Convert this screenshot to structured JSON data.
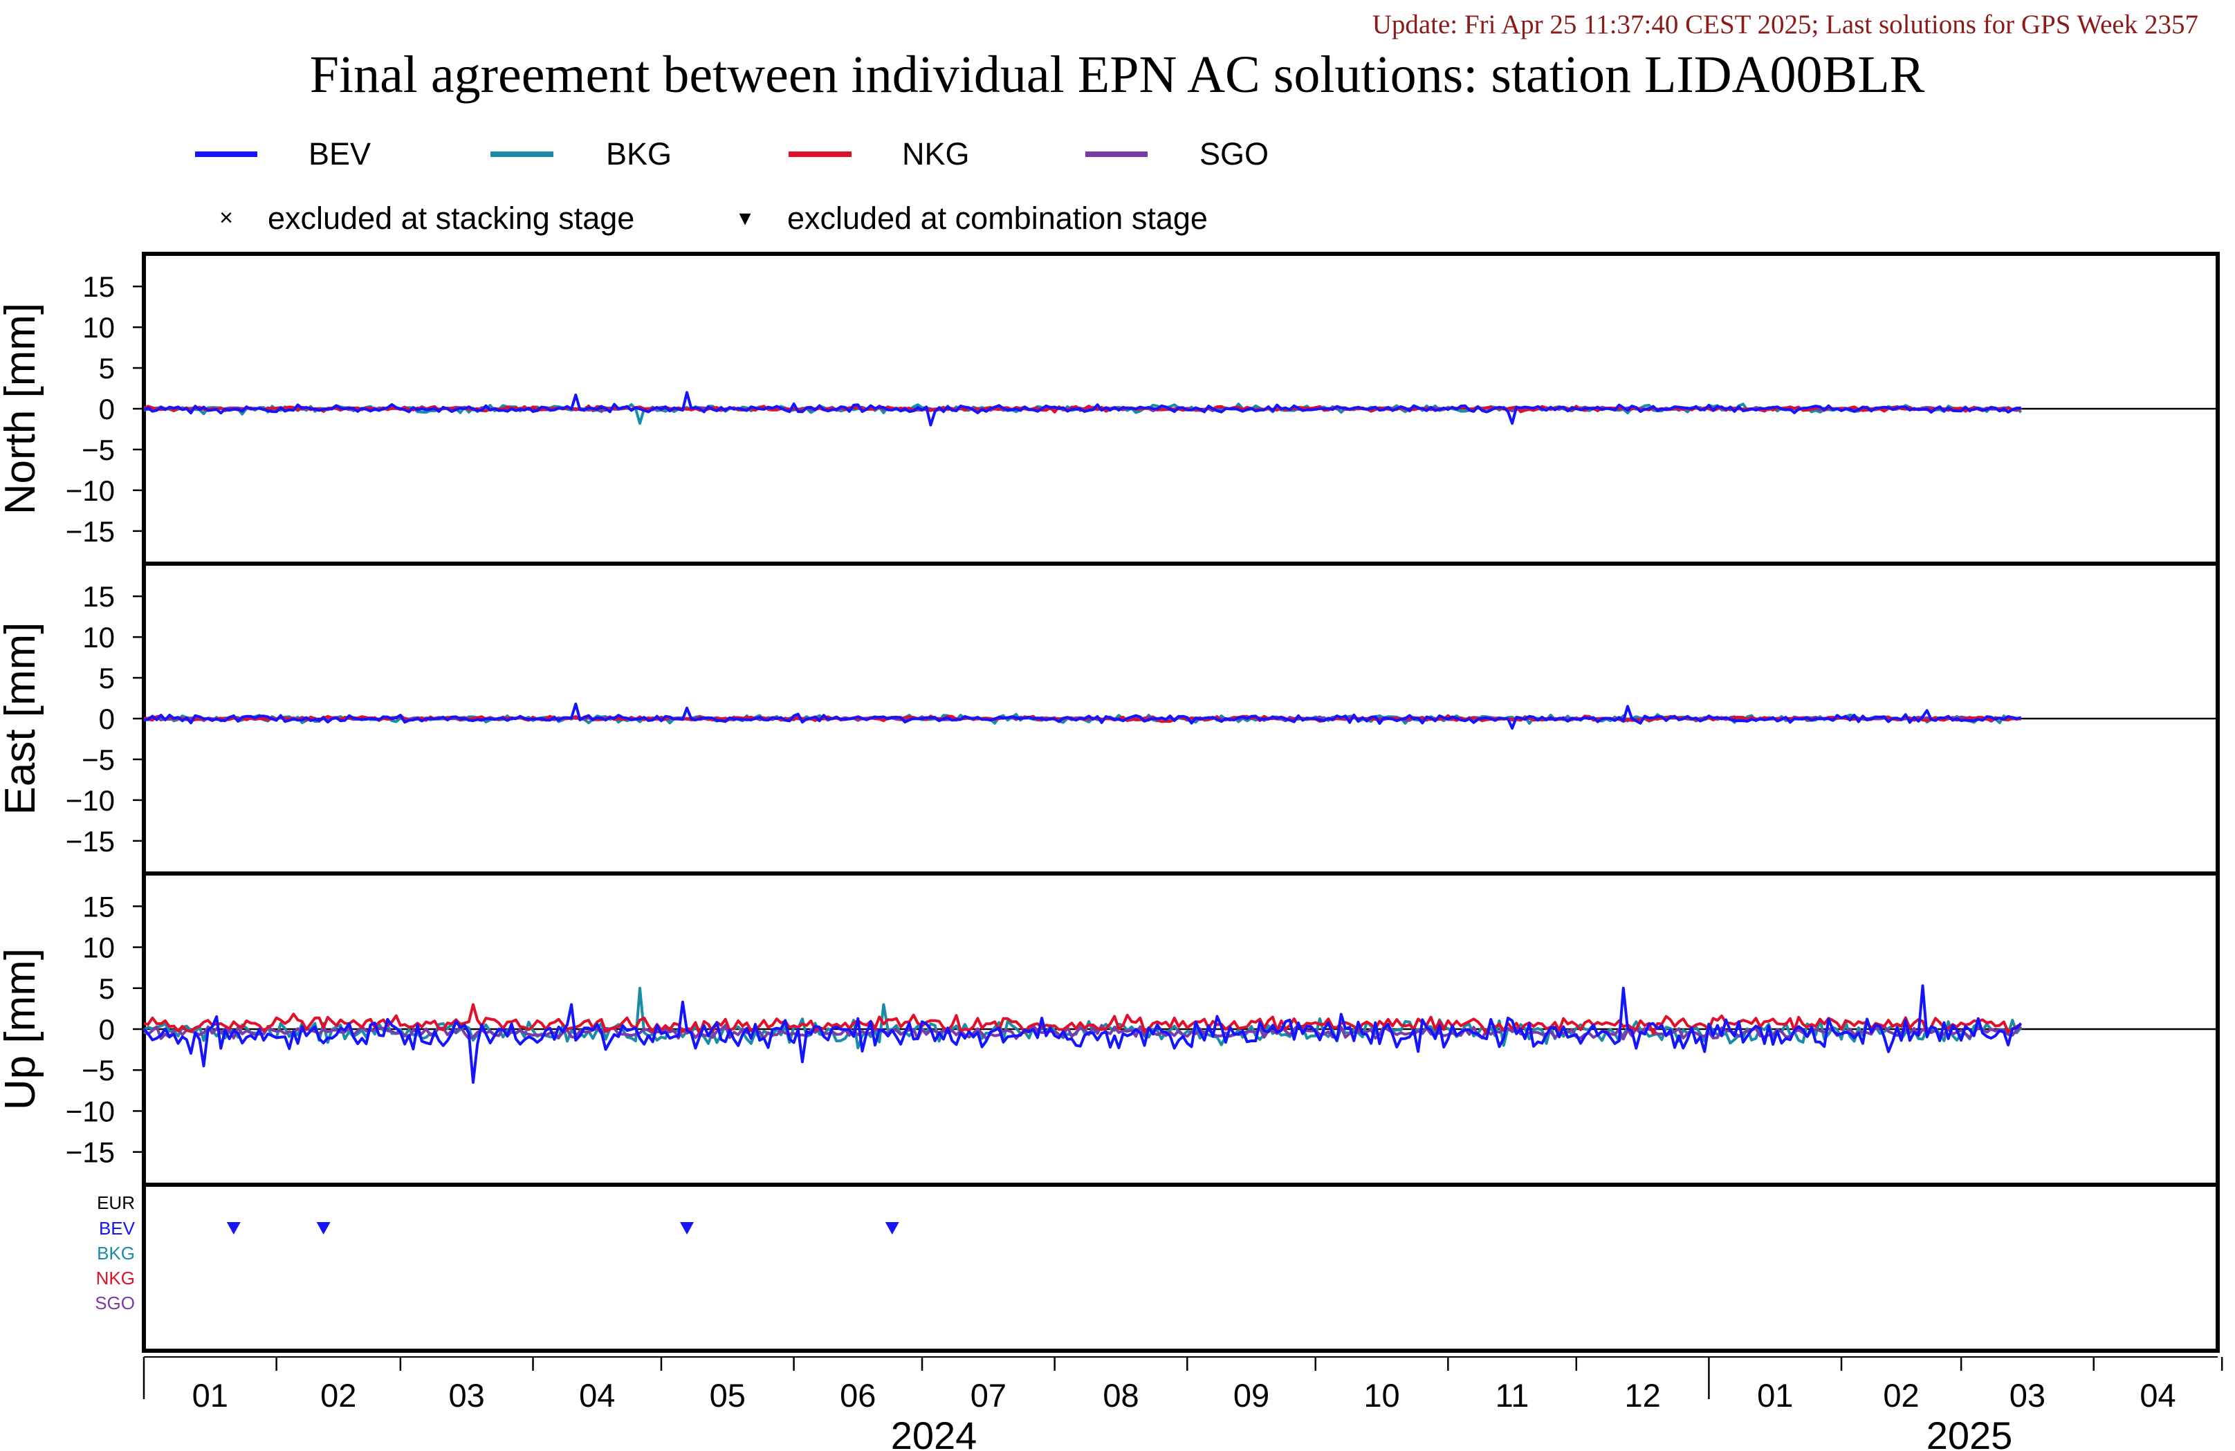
{
  "header": {
    "update_text": "Update: Fri Apr 25 11:37:40 CEST 2025; Last solutions for GPS Week 2357",
    "update_color": "#8b1a1a",
    "title": "Final agreement between individual EPN AC solutions: station LIDA00BLR"
  },
  "legend": {
    "series": [
      {
        "name": "BEV",
        "color": "#1414ff"
      },
      {
        "name": "BKG",
        "color": "#1a8ca8"
      },
      {
        "name": "NKG",
        "color": "#e0102a"
      },
      {
        "name": "SGO",
        "color": "#7a3aa8"
      }
    ],
    "markers": [
      {
        "symbol": "×",
        "label": "excluded at stacking stage"
      },
      {
        "symbol": "▾",
        "label": "excluded at combination stage"
      }
    ]
  },
  "panels": [
    {
      "key": "north",
      "ylabel": "North [mm]"
    },
    {
      "key": "east",
      "ylabel": "East [mm]"
    },
    {
      "key": "up",
      "ylabel": "Up [mm]"
    }
  ],
  "yticks": [
    "15",
    "10",
    "5",
    "0",
    "−5",
    "−10",
    "−15"
  ],
  "exclusion_panel": {
    "labels": [
      {
        "name": "EUR",
        "color": "#000000"
      },
      {
        "name": "BEV",
        "color": "#1414ff"
      },
      {
        "name": "BKG",
        "color": "#1a8ca8"
      },
      {
        "name": "NKG",
        "color": "#e0102a"
      },
      {
        "name": "SGO",
        "color": "#7a3aa8"
      }
    ],
    "marker_color": "#1414ff"
  },
  "xaxis": {
    "month_labels": [
      "01",
      "02",
      "03",
      "04",
      "05",
      "06",
      "07",
      "08",
      "09",
      "10",
      "11",
      "12",
      "01",
      "02",
      "03",
      "04"
    ],
    "year_labels": [
      "2024",
      "2025"
    ]
  },
  "chart_data": {
    "type": "line",
    "title": "Final agreement between individual EPN AC solutions: station LIDA00BLR",
    "x_unit": "date",
    "xlim": [
      "2024-01-01",
      "2025-04-30"
    ],
    "ylim": [
      -19,
      19
    ],
    "grid": false,
    "legend_position": "top",
    "panels": [
      {
        "name": "North",
        "ylabel": "North [mm]",
        "series": [
          {
            "name": "BEV",
            "noise_mm": 0.3,
            "spikes": [
              {
                "date": "2024-04-11",
                "value": 1.7
              },
              {
                "date": "2024-05-07",
                "value": 2.0
              },
              {
                "date": "2024-07-03",
                "value": -2.0
              },
              {
                "date": "2024-11-16",
                "value": -1.8
              }
            ]
          },
          {
            "name": "BKG",
            "noise_mm": 0.3,
            "spikes": [
              {
                "date": "2024-04-26",
                "value": -1.8
              }
            ]
          },
          {
            "name": "NKG",
            "noise_mm": 0.2,
            "spikes": []
          },
          {
            "name": "SGO",
            "noise_mm": 0.15,
            "spikes": []
          }
        ]
      },
      {
        "name": "East",
        "ylabel": "East [mm]",
        "series": [
          {
            "name": "BEV",
            "noise_mm": 0.3,
            "spikes": [
              {
                "date": "2024-04-11",
                "value": 1.8
              },
              {
                "date": "2024-05-07",
                "value": 1.3
              },
              {
                "date": "2024-11-16",
                "value": -1.2
              },
              {
                "date": "2024-12-13",
                "value": 1.5
              },
              {
                "date": "2025-02-21",
                "value": 1.0
              }
            ]
          },
          {
            "name": "BKG",
            "noise_mm": 0.3,
            "spikes": []
          },
          {
            "name": "NKG",
            "noise_mm": 0.2,
            "spikes": []
          },
          {
            "name": "SGO",
            "noise_mm": 0.15,
            "spikes": []
          }
        ]
      },
      {
        "name": "Up",
        "ylabel": "Up [mm]",
        "series": [
          {
            "name": "BEV",
            "noise_mm": 1.3,
            "offset_mm": -0.6,
            "spikes": [
              {
                "date": "2024-01-15",
                "value": -4.5
              },
              {
                "date": "2024-03-18",
                "value": -6.5
              },
              {
                "date": "2024-04-10",
                "value": 3.0
              },
              {
                "date": "2024-05-06",
                "value": 3.3
              },
              {
                "date": "2024-06-03",
                "value": -4.0
              },
              {
                "date": "2024-12-12",
                "value": 5.0
              },
              {
                "date": "2025-02-20",
                "value": 5.3
              }
            ]
          },
          {
            "name": "BKG",
            "noise_mm": 0.9,
            "offset_mm": -0.3,
            "spikes": [
              {
                "date": "2024-04-26",
                "value": 5.0
              },
              {
                "date": "2024-06-22",
                "value": 3.0
              }
            ]
          },
          {
            "name": "NKG",
            "noise_mm": 0.7,
            "offset_mm": 0.6,
            "spikes": [
              {
                "date": "2024-03-18",
                "value": 3.0
              }
            ]
          },
          {
            "name": "SGO",
            "noise_mm": 0.5,
            "offset_mm": -0.4,
            "spikes": []
          }
        ]
      }
    ],
    "combination_exclusions": [
      {
        "ac": "BEV",
        "date": "2024-01-22"
      },
      {
        "ac": "BEV",
        "date": "2024-02-12"
      },
      {
        "ac": "BEV",
        "date": "2024-05-07"
      },
      {
        "ac": "BEV",
        "date": "2024-06-24"
      }
    ],
    "data_end": "2025-03-15"
  }
}
